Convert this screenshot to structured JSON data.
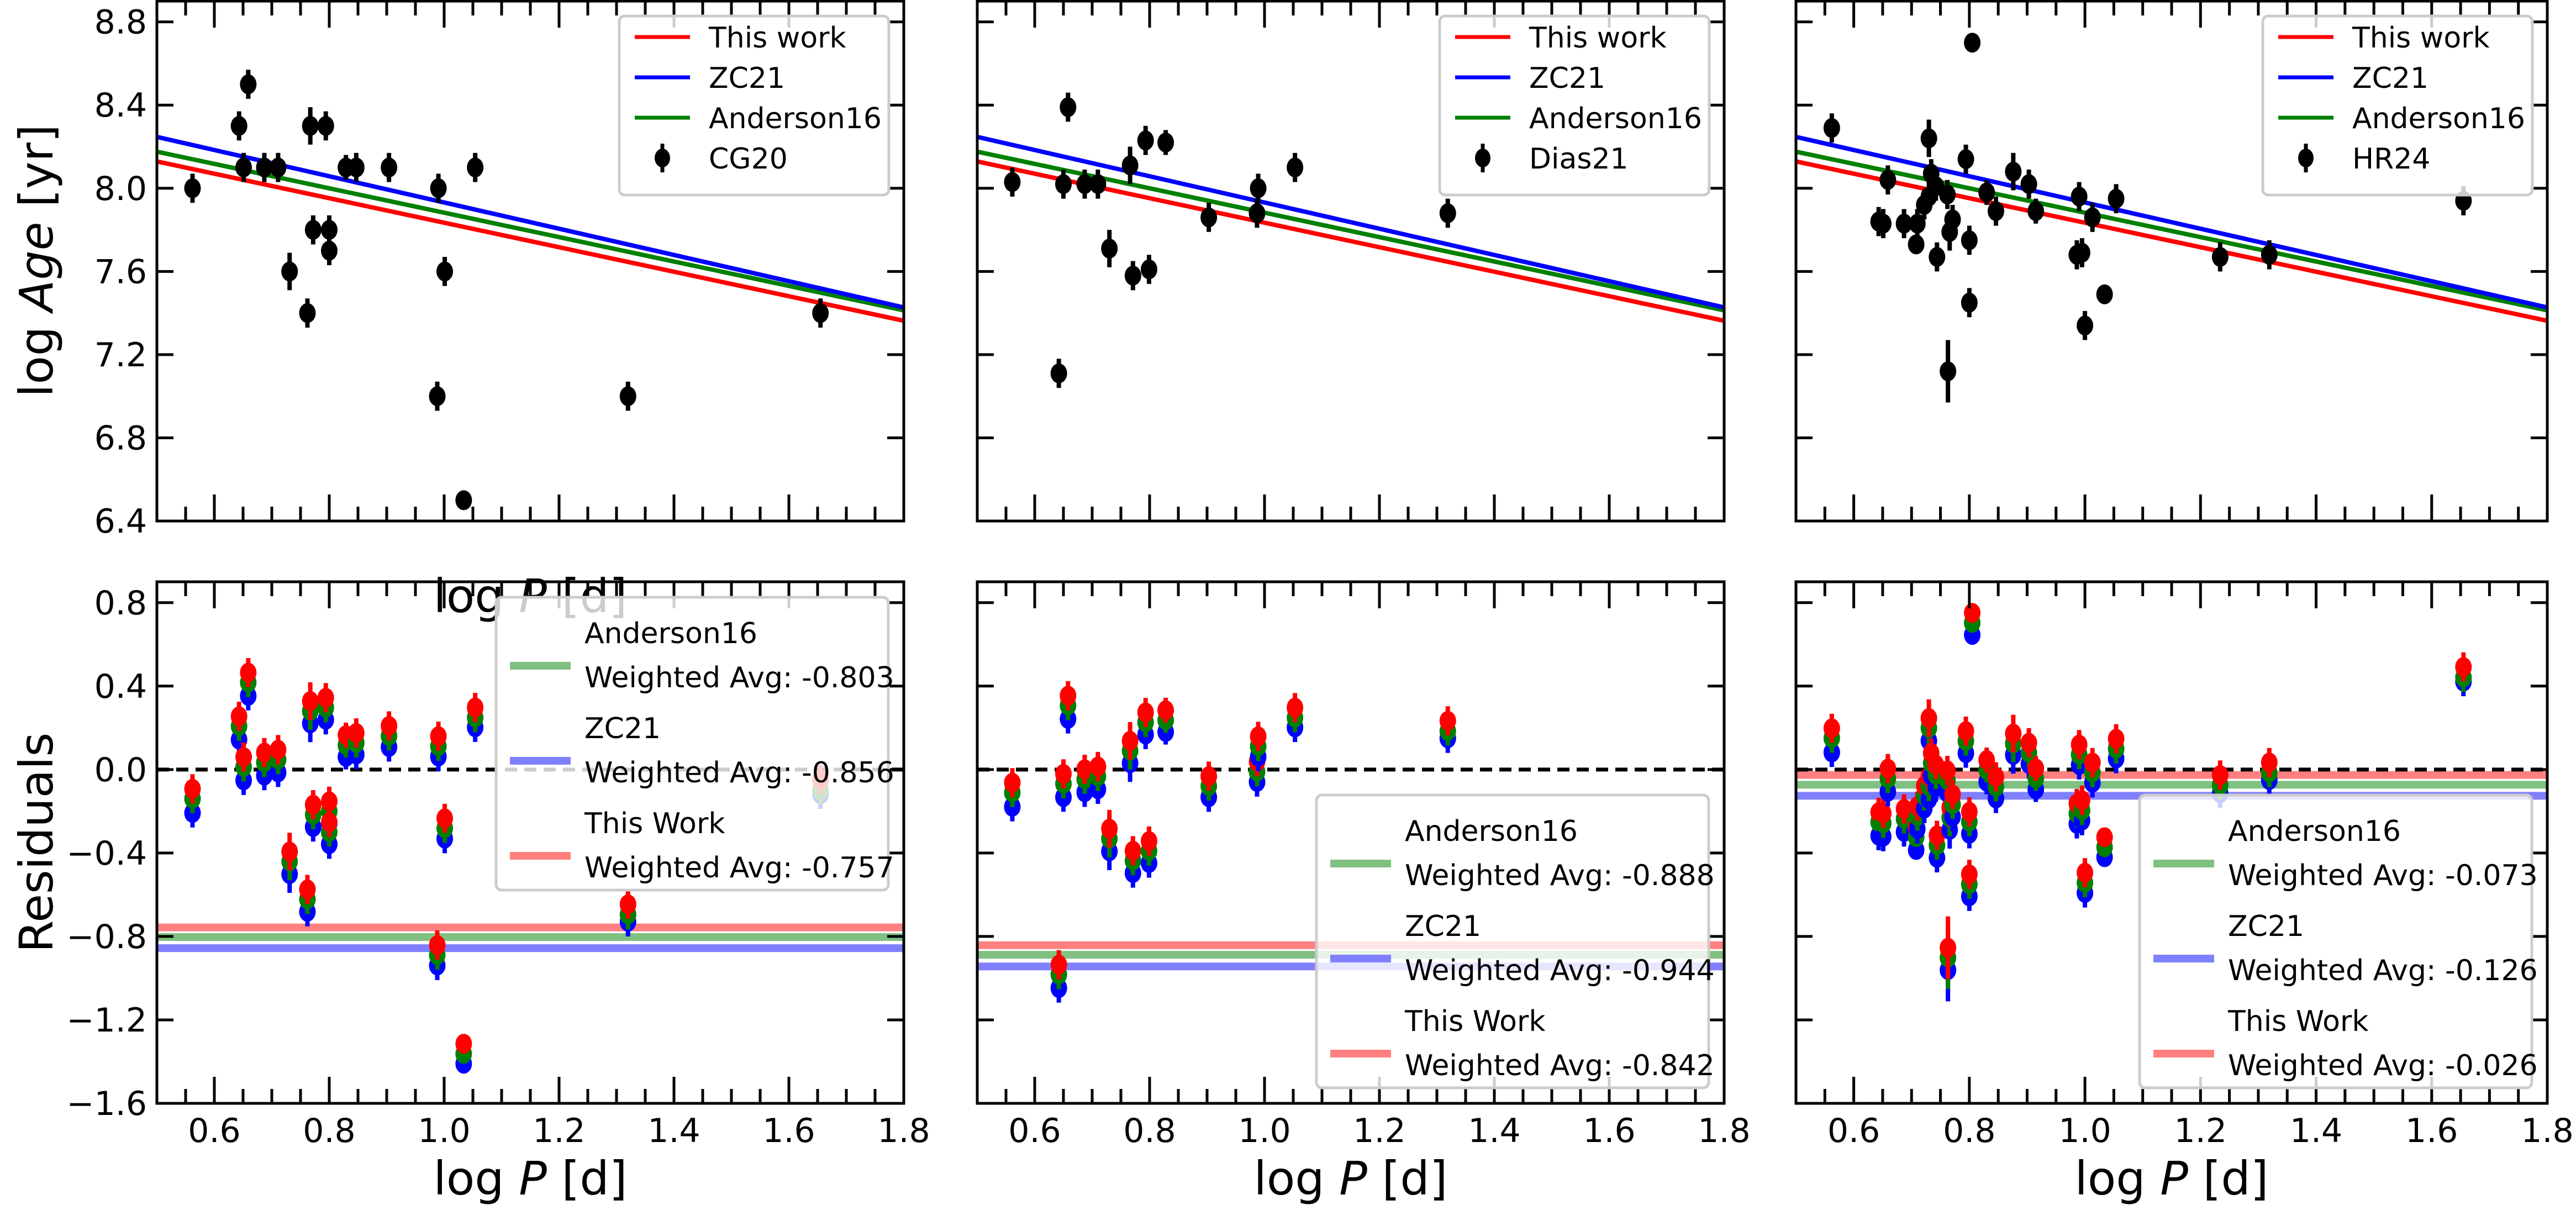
{
  "chart_data": [
    {
      "panel": "top-left",
      "type": "scatter",
      "xlabel": "log P [d]",
      "ylabel": "log Age [yr]",
      "xlim": [
        0.5,
        1.8
      ],
      "ylim": [
        6.4,
        8.9
      ],
      "xticks": [
        "0.6",
        "0.8",
        "1.0",
        "1.2",
        "1.4",
        "1.6",
        "1.8"
      ],
      "yticks": [
        "6.4",
        "6.8",
        "7.2",
        "7.6",
        "8.0",
        "8.4",
        "8.8"
      ],
      "show_xticklabels": false,
      "show_ylabel": true,
      "legend_position": "top-right",
      "legend": [
        "This work",
        "ZC21",
        "Anderson16",
        "CG20"
      ],
      "dataset": "CG20",
      "points": [
        {
          "x": 0.562,
          "y": 8.0,
          "err": 0.07
        },
        {
          "x": 0.643,
          "y": 8.3,
          "err": 0.07
        },
        {
          "x": 0.651,
          "y": 8.1,
          "err": 0.07
        },
        {
          "x": 0.659,
          "y": 8.5,
          "err": 0.07
        },
        {
          "x": 0.687,
          "y": 8.1,
          "err": 0.07
        },
        {
          "x": 0.711,
          "y": 8.1,
          "err": 0.07
        },
        {
          "x": 0.731,
          "y": 7.6,
          "err": 0.09
        },
        {
          "x": 0.762,
          "y": 7.4,
          "err": 0.07
        },
        {
          "x": 0.767,
          "y": 8.3,
          "err": 0.09
        },
        {
          "x": 0.772,
          "y": 7.8,
          "err": 0.07
        },
        {
          "x": 0.794,
          "y": 8.3,
          "err": 0.07
        },
        {
          "x": 0.8,
          "y": 7.8,
          "err": 0.07
        },
        {
          "x": 0.8,
          "y": 7.7,
          "err": 0.07
        },
        {
          "x": 0.829,
          "y": 8.1,
          "err": 0.06
        },
        {
          "x": 0.847,
          "y": 8.1,
          "err": 0.07
        },
        {
          "x": 0.904,
          "y": 8.1,
          "err": 0.07
        },
        {
          "x": 0.988,
          "y": 7.0,
          "err": 0.07
        },
        {
          "x": 0.99,
          "y": 8.0,
          "err": 0.07
        },
        {
          "x": 1.001,
          "y": 7.6,
          "err": 0.07
        },
        {
          "x": 1.034,
          "y": 6.5,
          "err": 0.03
        },
        {
          "x": 1.054,
          "y": 8.1,
          "err": 0.07
        },
        {
          "x": 1.32,
          "y": 7.0,
          "err": 0.07
        },
        {
          "x": 1.655,
          "y": 7.4,
          "err": 0.07
        }
      ]
    },
    {
      "panel": "top-middle",
      "type": "scatter",
      "xlabel": "",
      "ylabel": "",
      "xlim": [
        0.5,
        1.8
      ],
      "ylim": [
        6.4,
        8.9
      ],
      "xticks": [
        "0.6",
        "0.8",
        "1.0",
        "1.2",
        "1.4",
        "1.6",
        "1.8"
      ],
      "yticks": [
        "6.4",
        "6.8",
        "7.2",
        "7.6",
        "8.0",
        "8.4",
        "8.8"
      ],
      "show_xticklabels": false,
      "show_ylabel": false,
      "legend_position": "top-right",
      "legend": [
        "This work",
        "ZC21",
        "Anderson16",
        "Dias21"
      ],
      "dataset": "Dias21",
      "points": [
        {
          "x": 0.561,
          "y": 8.03,
          "err": 0.07
        },
        {
          "x": 0.642,
          "y": 7.11,
          "err": 0.07
        },
        {
          "x": 0.65,
          "y": 8.02,
          "err": 0.07
        },
        {
          "x": 0.658,
          "y": 8.39,
          "err": 0.07
        },
        {
          "x": 0.687,
          "y": 8.02,
          "err": 0.07
        },
        {
          "x": 0.71,
          "y": 8.02,
          "err": 0.07
        },
        {
          "x": 0.73,
          "y": 7.71,
          "err": 0.09
        },
        {
          "x": 0.766,
          "y": 8.11,
          "err": 0.09
        },
        {
          "x": 0.771,
          "y": 7.58,
          "err": 0.07
        },
        {
          "x": 0.793,
          "y": 8.23,
          "err": 0.07
        },
        {
          "x": 0.799,
          "y": 7.61,
          "err": 0.07
        },
        {
          "x": 0.828,
          "y": 8.22,
          "err": 0.06
        },
        {
          "x": 0.903,
          "y": 7.86,
          "err": 0.07
        },
        {
          "x": 0.987,
          "y": 7.88,
          "err": 0.07
        },
        {
          "x": 0.989,
          "y": 8.0,
          "err": 0.07
        },
        {
          "x": 1.053,
          "y": 8.1,
          "err": 0.07
        },
        {
          "x": 1.319,
          "y": 7.88,
          "err": 0.07
        }
      ]
    },
    {
      "panel": "top-right",
      "type": "scatter",
      "xlabel": "",
      "ylabel": "",
      "xlim": [
        0.5,
        1.8
      ],
      "ylim": [
        6.4,
        8.9
      ],
      "xticks": [
        "0.6",
        "0.8",
        "1.0",
        "1.2",
        "1.4",
        "1.6",
        "1.8"
      ],
      "yticks": [
        "6.4",
        "6.8",
        "7.2",
        "7.6",
        "8.0",
        "8.4",
        "8.8"
      ],
      "show_xticklabels": false,
      "show_ylabel": false,
      "legend_position": "top-right",
      "legend": [
        "This work",
        "ZC21",
        "Anderson16",
        "HR24"
      ],
      "dataset": "HR24",
      "points": [
        {
          "x": 0.562,
          "y": 8.29,
          "err": 0.07
        },
        {
          "x": 0.643,
          "y": 7.84,
          "err": 0.07
        },
        {
          "x": 0.651,
          "y": 7.83,
          "err": 0.07
        },
        {
          "x": 0.659,
          "y": 8.04,
          "err": 0.07
        },
        {
          "x": 0.687,
          "y": 7.83,
          "err": 0.07
        },
        {
          "x": 0.708,
          "y": 7.73,
          "err": 0.04
        },
        {
          "x": 0.71,
          "y": 7.83,
          "err": 0.07
        },
        {
          "x": 0.722,
          "y": 7.92,
          "err": 0.07
        },
        {
          "x": 0.73,
          "y": 8.24,
          "err": 0.09
        },
        {
          "x": 0.73,
          "y": 7.96,
          "err": 0.07
        },
        {
          "x": 0.734,
          "y": 8.07,
          "err": 0.07
        },
        {
          "x": 0.742,
          "y": 8.01,
          "err": 0.07
        },
        {
          "x": 0.744,
          "y": 7.67,
          "err": 0.07
        },
        {
          "x": 0.762,
          "y": 7.97,
          "err": 0.07
        },
        {
          "x": 0.763,
          "y": 7.12,
          "err": 0.15
        },
        {
          "x": 0.766,
          "y": 7.79,
          "err": 0.09
        },
        {
          "x": 0.771,
          "y": 7.85,
          "err": 0.07
        },
        {
          "x": 0.794,
          "y": 8.14,
          "err": 0.07
        },
        {
          "x": 0.8,
          "y": 7.75,
          "err": 0.07
        },
        {
          "x": 0.8,
          "y": 7.45,
          "err": 0.07
        },
        {
          "x": 0.805,
          "y": 8.7,
          "err": 0.04
        },
        {
          "x": 0.83,
          "y": 7.98,
          "err": 0.06
        },
        {
          "x": 0.846,
          "y": 7.89,
          "err": 0.07
        },
        {
          "x": 0.876,
          "y": 8.08,
          "err": 0.09
        },
        {
          "x": 0.903,
          "y": 8.02,
          "err": 0.07
        },
        {
          "x": 0.915,
          "y": 7.89,
          "err": 0.06
        },
        {
          "x": 0.986,
          "y": 7.68,
          "err": 0.07
        },
        {
          "x": 0.99,
          "y": 7.96,
          "err": 0.07
        },
        {
          "x": 0.995,
          "y": 7.69,
          "err": 0.07
        },
        {
          "x": 1.0,
          "y": 7.34,
          "err": 0.07
        },
        {
          "x": 1.013,
          "y": 7.86,
          "err": 0.07
        },
        {
          "x": 1.034,
          "y": 7.49,
          "err": 0.04
        },
        {
          "x": 1.054,
          "y": 7.95,
          "err": 0.07
        },
        {
          "x": 1.234,
          "y": 7.67,
          "err": 0.07
        },
        {
          "x": 1.319,
          "y": 7.68,
          "err": 0.07
        },
        {
          "x": 1.655,
          "y": 7.94,
          "err": 0.07
        }
      ]
    },
    {
      "panel": "bottom-left",
      "type": "scatter",
      "xlabel": "log P [d]",
      "ylabel": "Residuals",
      "xlim": [
        0.5,
        1.8
      ],
      "ylim": [
        -1.6,
        0.9
      ],
      "xticks": [
        "0.6",
        "0.8",
        "1.0",
        "1.2",
        "1.4",
        "1.6",
        "1.8"
      ],
      "yticks": [
        "−1.6",
        "−1.2",
        "−0.8",
        "−0.4",
        "0.0",
        "0.4",
        "0.8"
      ],
      "show_xticklabels": true,
      "show_ylabel": true,
      "legend_position": "top-right",
      "residuals_of": "CG20",
      "weighted_avg": [
        {
          "name": "Anderson16",
          "label": "Anderson16",
          "avg_label": "Weighted Avg: -0.803",
          "value": -0.803
        },
        {
          "name": "ZC21",
          "label": "ZC21",
          "avg_label": "Weighted Avg: -0.856",
          "value": -0.856
        },
        {
          "name": "This Work",
          "label": "This Work",
          "avg_label": "Weighted Avg: -0.757",
          "value": -0.757
        }
      ]
    },
    {
      "panel": "bottom-middle",
      "type": "scatter",
      "xlabel": "log P [d]",
      "ylabel": "",
      "xlim": [
        0.5,
        1.8
      ],
      "ylim": [
        -1.6,
        0.9
      ],
      "xticks": [
        "0.6",
        "0.8",
        "1.0",
        "1.2",
        "1.4",
        "1.6",
        "1.8"
      ],
      "yticks": [
        "−1.6",
        "−1.2",
        "−0.8",
        "−0.4",
        "0.0",
        "0.4",
        "0.8"
      ],
      "show_xticklabels": true,
      "show_ylabel": false,
      "legend_position": "bottom-right",
      "residuals_of": "Dias21",
      "weighted_avg": [
        {
          "name": "Anderson16",
          "label": "Anderson16",
          "avg_label": "Weighted Avg: -0.888",
          "value": -0.888
        },
        {
          "name": "ZC21",
          "label": "ZC21",
          "avg_label": "Weighted Avg: -0.944",
          "value": -0.944
        },
        {
          "name": "This Work",
          "label": "This Work",
          "avg_label": "Weighted Avg: -0.842",
          "value": -0.842
        }
      ]
    },
    {
      "panel": "bottom-right",
      "type": "scatter",
      "xlabel": "log P [d]",
      "ylabel": "",
      "xlim": [
        0.5,
        1.8
      ],
      "ylim": [
        -1.6,
        0.9
      ],
      "xticks": [
        "0.6",
        "0.8",
        "1.0",
        "1.2",
        "1.4",
        "1.6",
        "1.8"
      ],
      "yticks": [
        "−1.6",
        "−1.2",
        "−0.8",
        "−0.4",
        "0.0",
        "0.4",
        "0.8"
      ],
      "show_xticklabels": true,
      "show_ylabel": false,
      "legend_position": "bottom-right",
      "residuals_of": "HR24",
      "weighted_avg": [
        {
          "name": "Anderson16",
          "label": "Anderson16",
          "avg_label": "Weighted Avg: -0.073",
          "value": -0.073
        },
        {
          "name": "ZC21",
          "label": "ZC21",
          "avg_label": "Weighted Avg: -0.126",
          "value": -0.126
        },
        {
          "name": "This Work",
          "label": "This Work",
          "avg_label": "Weighted Avg: -0.026",
          "value": -0.026
        }
      ]
    }
  ],
  "fit_relations": [
    {
      "name": "This work",
      "color": "#ff0000",
      "y_at_xmin": 8.129,
      "y_at_xmax": 7.363
    },
    {
      "name": "ZC21",
      "color": "#0000ff",
      "y_at_xmin": 8.247,
      "y_at_xmax": 7.427
    },
    {
      "name": "Anderson16",
      "color": "#008000",
      "y_at_xmin": 8.176,
      "y_at_xmax": 7.413
    }
  ],
  "colors": {
    "data_points": "#000000",
    "this_work": "#ff0000",
    "zc21": "#0000ff",
    "anderson16": "#008000",
    "this_work_avg": "#ff8080",
    "zc21_avg": "#8080ff",
    "anderson16_avg": "#80c080",
    "zero_line": "#000000"
  }
}
